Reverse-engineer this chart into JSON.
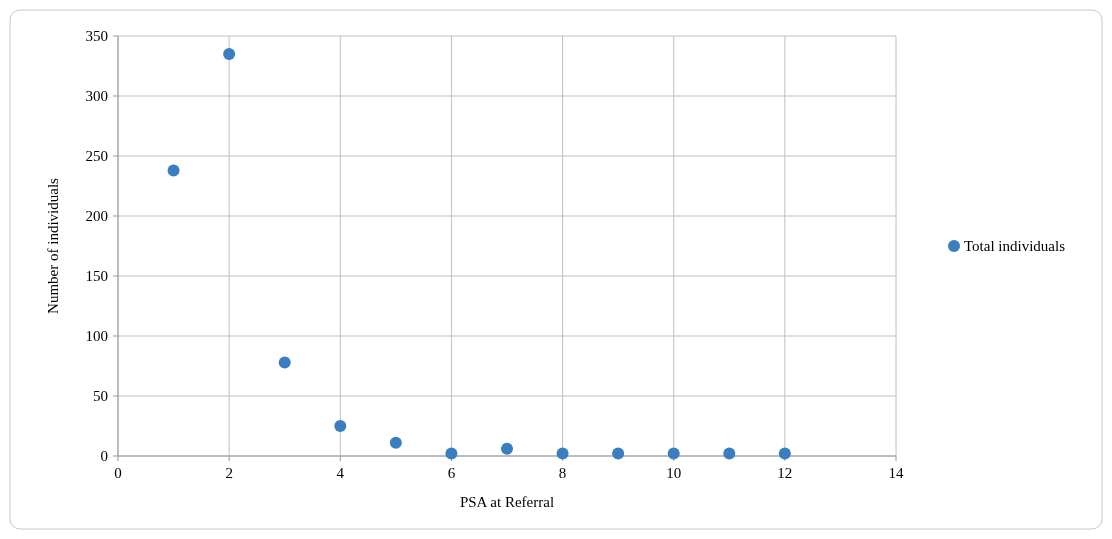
{
  "chart_data": {
    "type": "scatter",
    "xlabel": "PSA at Referral",
    "ylabel": "Number of individuals",
    "x": [
      1,
      2,
      3,
      4,
      5,
      6,
      7,
      8,
      9,
      10,
      11,
      12
    ],
    "series": [
      {
        "name": "Total individuals",
        "color": "#3a7dc0",
        "values": [
          238,
          335,
          78,
          25,
          11,
          2,
          6,
          2,
          2,
          2,
          2,
          2
        ]
      }
    ],
    "xlim": [
      0,
      14
    ],
    "xticks": [
      0,
      2,
      4,
      6,
      8,
      10,
      12,
      14
    ],
    "ylim": [
      0,
      350
    ],
    "yticks": [
      0,
      50,
      100,
      150,
      200,
      250,
      300,
      350
    ],
    "grid": true,
    "legend": "right",
    "marker": "circle"
  }
}
